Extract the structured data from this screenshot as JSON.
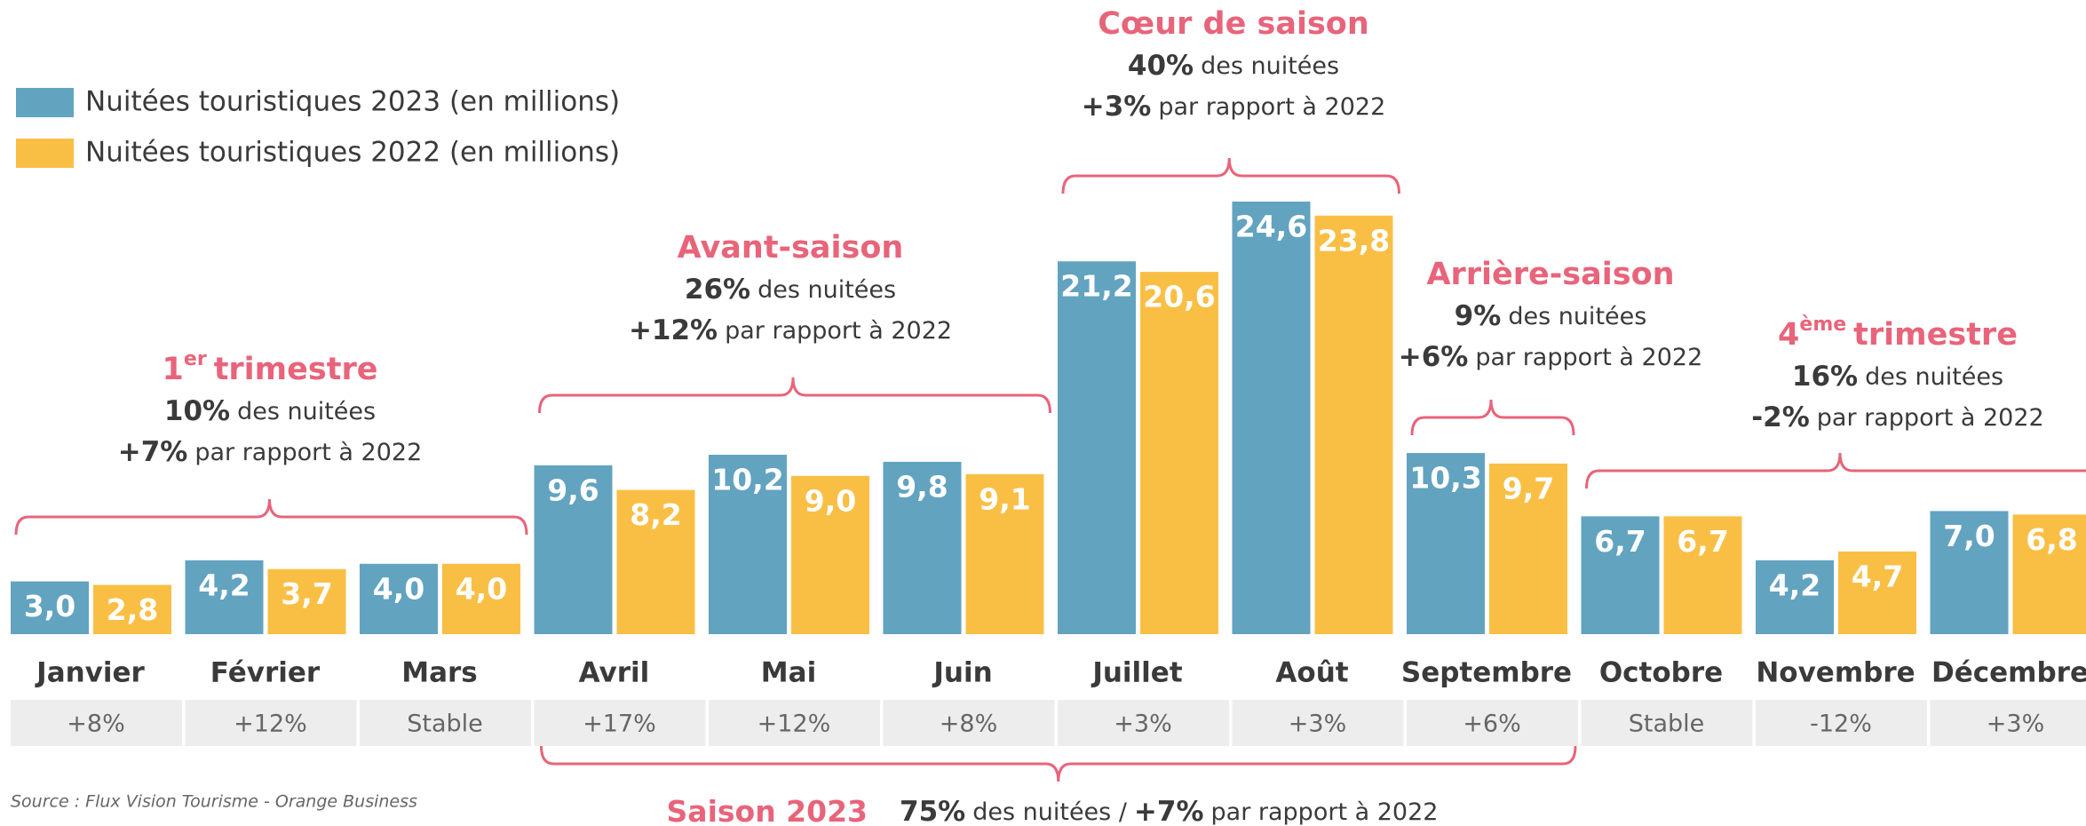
{
  "chart_data": {
    "type": "bar",
    "categories": [
      "Janvier",
      "Février",
      "Mars",
      "Avril",
      "Mai",
      "Juin",
      "Juillet",
      "Août",
      "Septembre",
      "Octobre",
      "Novembre",
      "Décembre"
    ],
    "series": [
      {
        "name": "Nuitées touristiques 2023 (en millions)",
        "color": "#62a3c0",
        "values": [
          3.0,
          4.2,
          4.0,
          9.6,
          10.2,
          9.8,
          21.2,
          24.6,
          10.3,
          6.7,
          4.2,
          7.0
        ],
        "value_labels": [
          "3,0",
          "4,2",
          "4,0",
          "9,6",
          "10,2",
          "9,8",
          "21,2",
          "24,6",
          "10,3",
          "6,7",
          "4,2",
          "7,0"
        ]
      },
      {
        "name": "Nuitées touristiques 2022 (en millions)",
        "color": "#f9bf45",
        "values": [
          2.8,
          3.7,
          4.0,
          8.2,
          9.0,
          9.1,
          20.6,
          23.8,
          9.7,
          6.7,
          4.7,
          6.8
        ],
        "value_labels": [
          "2,8",
          "3,7",
          "4,0",
          "8,2",
          "9,0",
          "9,1",
          "20,6",
          "23,8",
          "9,7",
          "6,7",
          "4,7",
          "6,8"
        ]
      }
    ],
    "variations": [
      "+8%",
      "+12%",
      "Stable",
      "+17%",
      "+12%",
      "+8%",
      "+3%",
      "+3%",
      "+6%",
      "Stable",
      "-12%",
      "+3%"
    ],
    "annotations": [
      {
        "title": "1",
        "title_sup": "er",
        "title_rest": "trimestre",
        "share": "10%",
        "share_text": "des nuitées",
        "change": "+7%",
        "change_text": "par rapport à 2022"
      },
      {
        "title": "Avant-saison",
        "share": "26%",
        "share_text": "des nuitées",
        "change": "+12%",
        "change_text": "par rapport à 2022"
      },
      {
        "title": "Cœur de saison",
        "share": "40%",
        "share_text": "des nuitées",
        "change": "+3%",
        "change_text": "par rapport à 2022"
      },
      {
        "title": "Arrière-saison",
        "share": "9%",
        "share_text": "des nuitées",
        "change": "+6%",
        "change_text": "par rapport à 2022"
      },
      {
        "title": "4",
        "title_sup": "ème",
        "title_rest": "trimestre",
        "share": "16%",
        "share_text": "des nuitées",
        "change": "-2%",
        "change_text": "par rapport à 2022"
      }
    ],
    "season": {
      "title": "Saison 2023",
      "share": "75%",
      "share_text": "des nuitées /",
      "change": "+7%",
      "change_text": "par rapport à 2022"
    },
    "source": "Source : Flux Vision Tourisme - Orange Business"
  }
}
